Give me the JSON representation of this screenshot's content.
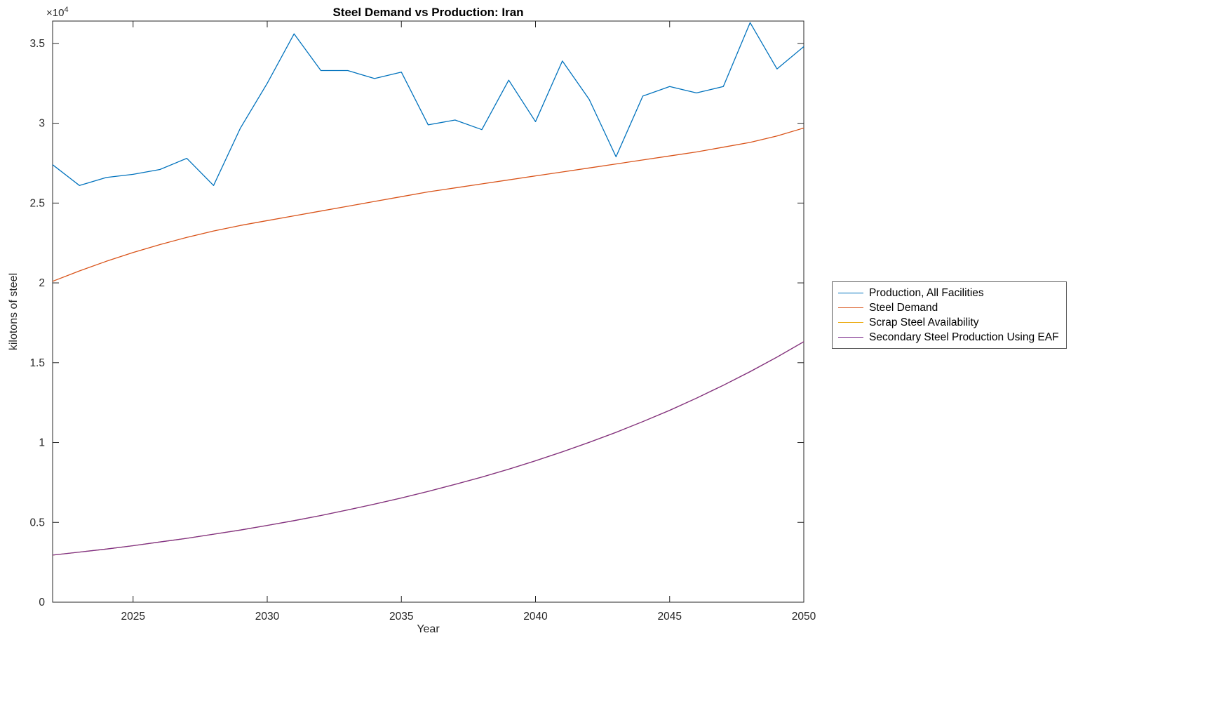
{
  "title": "Steel Demand vs Production: Iran",
  "xlabel": "Year",
  "ylabel": "kilotons of steel",
  "y_scale_base": "×10",
  "y_scale_exponent": "4",
  "legend": {
    "entries": [
      "Production, All Facilities",
      "Steel Demand",
      "Scrap Steel Availability",
      "Secondary Steel Production Using EAF"
    ]
  },
  "chart_data": {
    "type": "line",
    "title": "Steel Demand vs Production: Iran",
    "xlabel": "Year",
    "ylabel": "kilotons of steel",
    "xlim": [
      2022,
      2050
    ],
    "ylim": [
      0,
      36400
    ],
    "x_tick_values": [
      2025,
      2030,
      2035,
      2040,
      2045,
      2050
    ],
    "x_tick_labels": [
      "2025",
      "2030",
      "2035",
      "2040",
      "2045",
      "2050"
    ],
    "y_tick_values": [
      0,
      0.5,
      1,
      1.5,
      2,
      2.5,
      3,
      3.5
    ],
    "y_tick_labels": [
      "0",
      "0.5",
      "1",
      "1.5",
      "2",
      "2.5",
      "3",
      "3.5"
    ],
    "y_tick_scale": 10000,
    "grid": false,
    "legend_position": "right-outside",
    "x": [
      2022,
      2023,
      2024,
      2025,
      2026,
      2027,
      2028,
      2029,
      2030,
      2031,
      2032,
      2033,
      2034,
      2035,
      2036,
      2037,
      2038,
      2039,
      2040,
      2041,
      2042,
      2043,
      2044,
      2045,
      2046,
      2047,
      2048,
      2049,
      2050
    ],
    "series": [
      {
        "name": "Production, All Facilities",
        "color": "#0072BD",
        "values": [
          27400,
          26100,
          26600,
          26800,
          27100,
          27800,
          26100,
          29700,
          32500,
          35600,
          33300,
          33300,
          32800,
          33200,
          29900,
          30200,
          29600,
          32700,
          30100,
          33900,
          31500,
          27900,
          31700,
          32300,
          31900,
          32300,
          36300,
          33400,
          34800
        ]
      },
      {
        "name": "Steel Demand",
        "color": "#D95319",
        "values": [
          20100,
          20750,
          21350,
          21900,
          22400,
          22850,
          23250,
          23600,
          23900,
          24200,
          24500,
          24800,
          25100,
          25400,
          25700,
          25950,
          26200,
          26450,
          26700,
          26950,
          27200,
          27450,
          27700,
          27950,
          28200,
          28500,
          28800,
          29200,
          29700
        ]
      },
      {
        "name": "Scrap Steel Availability",
        "color": "#EDB120",
        "values": [
          2950,
          3140,
          3330,
          3540,
          3770,
          4000,
          4260,
          4520,
          4810,
          5110,
          5430,
          5780,
          6140,
          6530,
          6940,
          7380,
          7840,
          8330,
          8860,
          9420,
          10010,
          10640,
          11310,
          12020,
          12780,
          13590,
          14440,
          15350,
          16320
        ]
      },
      {
        "name": "Secondary Steel Production Using EAF",
        "color": "#7E2F8E",
        "values": [
          2950,
          3140,
          3330,
          3540,
          3770,
          4000,
          4260,
          4520,
          4810,
          5110,
          5430,
          5780,
          6140,
          6530,
          6940,
          7380,
          7840,
          8330,
          8860,
          9420,
          10010,
          10640,
          11310,
          12020,
          12780,
          13590,
          14440,
          15350,
          16320
        ]
      }
    ]
  }
}
